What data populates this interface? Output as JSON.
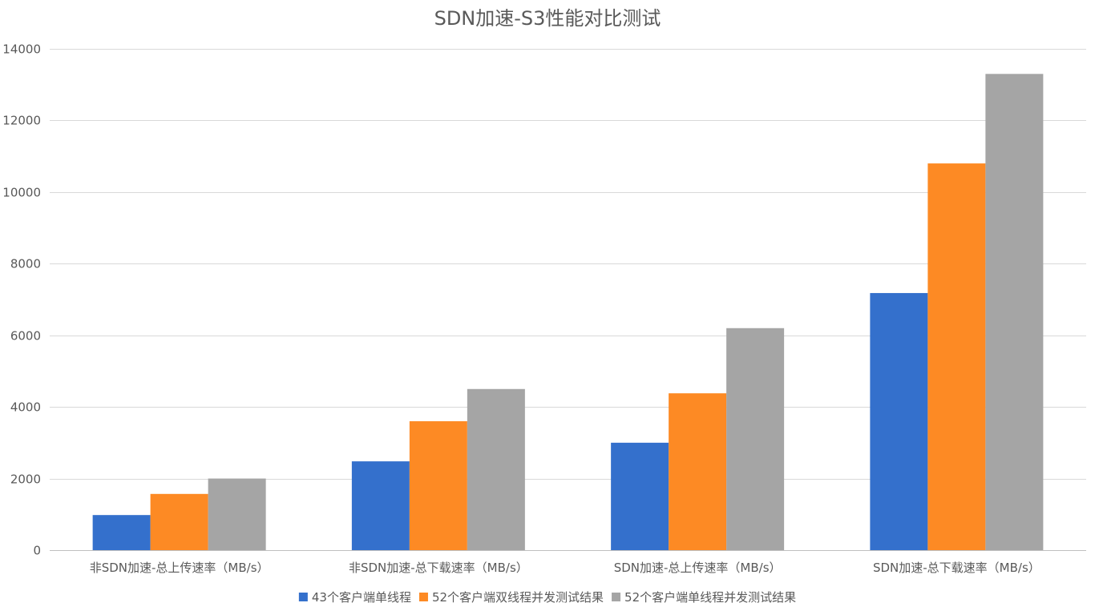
{
  "chart_data": {
    "type": "bar",
    "title": "SDN加速-S3性能对比测试",
    "xlabel": "",
    "ylabel": "",
    "categories": [
      "非SDN加速-总上传速率（MB/s）",
      "非SDN加速-总下载速率（MB/s）",
      "SDN加速-总上传速率（MB/s）",
      "SDN加速-总下载速率（MB/s）"
    ],
    "series": [
      {
        "name": "43个客户端单线程",
        "color": "#3470cc",
        "values": [
          980,
          2480,
          3000,
          7180
        ]
      },
      {
        "name": "52个客户端双线程并发测试结果",
        "color": "#fd8a24",
        "values": [
          1570,
          3600,
          4380,
          10800
        ]
      },
      {
        "name": "52个客户端单线程并发测试结果",
        "color": "#a5a5a5",
        "values": [
          2000,
          4500,
          6200,
          13300
        ]
      }
    ],
    "ylim": [
      0,
      14000
    ],
    "yticks": [
      0,
      2000,
      4000,
      6000,
      8000,
      10000,
      12000,
      14000
    ],
    "grid": true,
    "legend_position": "bottom"
  }
}
